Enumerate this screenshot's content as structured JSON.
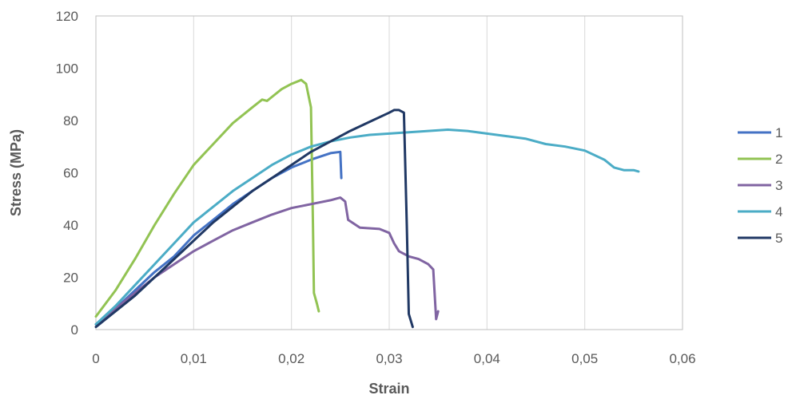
{
  "chart_data": {
    "type": "line",
    "title": "",
    "xlabel": "Strain",
    "ylabel": "Stress (MPa)",
    "xlim": [
      0,
      0.06
    ],
    "ylim": [
      0,
      120
    ],
    "x_ticks": [
      "0",
      "0,01",
      "0,02",
      "0,03",
      "0,04",
      "0,05",
      "0,06"
    ],
    "y_ticks": [
      "0",
      "20",
      "40",
      "60",
      "80",
      "100",
      "120"
    ],
    "grid": "vertical",
    "legend_position": "right",
    "series": [
      {
        "name": "1",
        "color": "#4472C4",
        "points": [
          [
            0,
            2
          ],
          [
            0.002,
            8
          ],
          [
            0.004,
            15
          ],
          [
            0.006,
            22
          ],
          [
            0.008,
            28
          ],
          [
            0.01,
            36
          ],
          [
            0.012,
            42
          ],
          [
            0.014,
            48
          ],
          [
            0.016,
            53
          ],
          [
            0.018,
            58
          ],
          [
            0.02,
            62
          ],
          [
            0.022,
            65
          ],
          [
            0.024,
            67.5
          ],
          [
            0.025,
            68
          ],
          [
            0.0251,
            58
          ]
        ]
      },
      {
        "name": "2",
        "color": "#92C353",
        "points": [
          [
            0,
            5
          ],
          [
            0.002,
            15
          ],
          [
            0.004,
            27
          ],
          [
            0.006,
            40
          ],
          [
            0.008,
            52
          ],
          [
            0.01,
            63
          ],
          [
            0.012,
            71
          ],
          [
            0.014,
            79
          ],
          [
            0.016,
            85
          ],
          [
            0.017,
            88
          ],
          [
            0.0175,
            87.5
          ],
          [
            0.018,
            89
          ],
          [
            0.019,
            92
          ],
          [
            0.02,
            94
          ],
          [
            0.021,
            95.5
          ],
          [
            0.0215,
            94
          ],
          [
            0.022,
            85
          ],
          [
            0.0222,
            40
          ],
          [
            0.0223,
            14
          ],
          [
            0.0226,
            10
          ],
          [
            0.0228,
            7
          ]
        ]
      },
      {
        "name": "3",
        "color": "#8064A2",
        "points": [
          [
            0,
            2
          ],
          [
            0.002,
            8
          ],
          [
            0.004,
            14
          ],
          [
            0.006,
            20
          ],
          [
            0.008,
            25
          ],
          [
            0.01,
            30
          ],
          [
            0.012,
            34
          ],
          [
            0.014,
            38
          ],
          [
            0.016,
            41
          ],
          [
            0.018,
            44
          ],
          [
            0.02,
            46.5
          ],
          [
            0.022,
            48
          ],
          [
            0.024,
            49.5
          ],
          [
            0.025,
            50.5
          ],
          [
            0.0255,
            49
          ],
          [
            0.0258,
            42
          ],
          [
            0.027,
            39
          ],
          [
            0.029,
            38.5
          ],
          [
            0.03,
            37
          ],
          [
            0.0305,
            33
          ],
          [
            0.031,
            30
          ],
          [
            0.032,
            28
          ],
          [
            0.033,
            27
          ],
          [
            0.034,
            25
          ],
          [
            0.0345,
            23
          ],
          [
            0.0348,
            4
          ],
          [
            0.035,
            7
          ]
        ]
      },
      {
        "name": "4",
        "color": "#4BACC6",
        "points": [
          [
            0,
            2
          ],
          [
            0.002,
            9
          ],
          [
            0.004,
            17
          ],
          [
            0.006,
            25
          ],
          [
            0.008,
            33
          ],
          [
            0.01,
            41
          ],
          [
            0.012,
            47
          ],
          [
            0.014,
            53
          ],
          [
            0.016,
            58
          ],
          [
            0.018,
            63
          ],
          [
            0.02,
            67
          ],
          [
            0.022,
            70
          ],
          [
            0.024,
            72
          ],
          [
            0.026,
            73.5
          ],
          [
            0.028,
            74.5
          ],
          [
            0.03,
            75
          ],
          [
            0.032,
            75.5
          ],
          [
            0.034,
            76
          ],
          [
            0.036,
            76.5
          ],
          [
            0.038,
            76
          ],
          [
            0.04,
            75
          ],
          [
            0.042,
            74
          ],
          [
            0.044,
            73
          ],
          [
            0.046,
            71
          ],
          [
            0.048,
            70
          ],
          [
            0.05,
            68.5
          ],
          [
            0.052,
            65
          ],
          [
            0.053,
            62
          ],
          [
            0.054,
            61
          ],
          [
            0.055,
            61
          ],
          [
            0.0555,
            60.5
          ]
        ]
      },
      {
        "name": "5",
        "color": "#203864",
        "points": [
          [
            0,
            1
          ],
          [
            0.002,
            7
          ],
          [
            0.004,
            13
          ],
          [
            0.006,
            20
          ],
          [
            0.008,
            27
          ],
          [
            0.01,
            34
          ],
          [
            0.012,
            41
          ],
          [
            0.014,
            47
          ],
          [
            0.016,
            53
          ],
          [
            0.018,
            58
          ],
          [
            0.02,
            63
          ],
          [
            0.022,
            68
          ],
          [
            0.024,
            72
          ],
          [
            0.026,
            76
          ],
          [
            0.028,
            79.5
          ],
          [
            0.03,
            83
          ],
          [
            0.0305,
            84
          ],
          [
            0.031,
            84
          ],
          [
            0.0315,
            83
          ],
          [
            0.0318,
            40
          ],
          [
            0.032,
            6
          ],
          [
            0.0324,
            1
          ]
        ]
      }
    ]
  }
}
